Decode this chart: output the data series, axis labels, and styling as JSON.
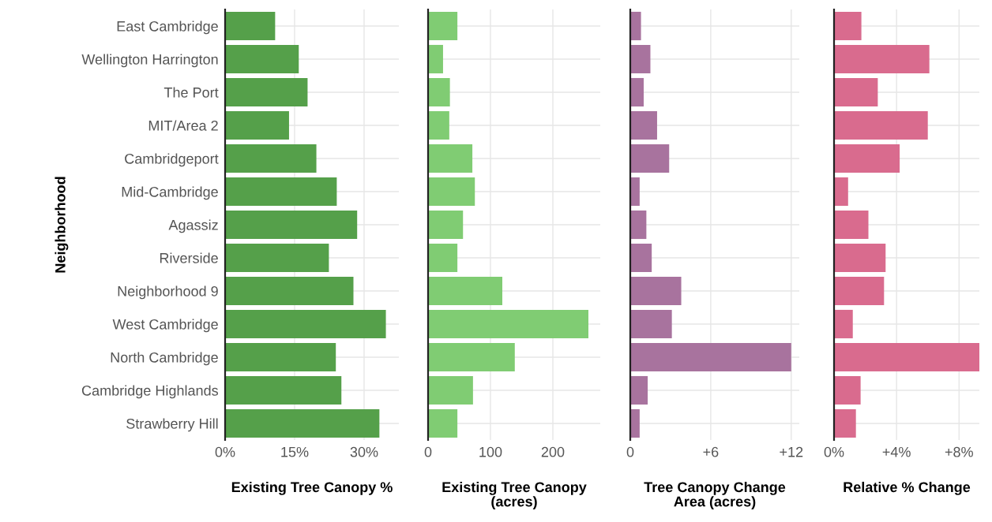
{
  "chart_data": [
    {
      "type": "bar",
      "orientation": "horizontal",
      "ylabel": "Neighborhood",
      "xlabel": "Existing Tree Canopy %",
      "categories": [
        "East Cambridge",
        "Wellington Harrington",
        "The Port",
        "MIT/Area 2",
        "Cambridgeport",
        "Mid-Cambridge",
        "Agassiz",
        "Riverside",
        "Neighborhood 9",
        "West Cambridge",
        "North Cambridge",
        "Cambridge Highlands",
        "Strawberry Hill"
      ],
      "values": [
        10.8,
        15.9,
        17.8,
        13.8,
        19.7,
        24.1,
        28.5,
        22.4,
        27.7,
        34.7,
        23.9,
        25.1,
        33.3
      ],
      "color": "#55a04a",
      "xlim": [
        0,
        37.5
      ],
      "xticks": [
        {
          "value": 0,
          "label": "0%"
        },
        {
          "value": 15,
          "label": "15%"
        },
        {
          "value": 30,
          "label": "30%"
        }
      ],
      "grid": true
    },
    {
      "type": "bar",
      "orientation": "horizontal",
      "xlabel": "Existing Tree Canopy\n(acres)",
      "values": [
        47,
        24,
        35,
        34,
        71,
        75,
        56,
        47,
        119,
        257,
        139,
        72,
        47
      ],
      "color": "#80cc73",
      "xlim": [
        0,
        276
      ],
      "xticks": [
        0,
        100,
        200
      ],
      "grid": true,
      "tick_labels": "x"
    },
    {
      "type": "bar",
      "orientation": "horizontal",
      "xlabel": "Tree Canopy Change\nArea (acres)",
      "values": [
        0.8,
        1.5,
        1.0,
        2.0,
        2.9,
        0.7,
        1.2,
        1.6,
        3.8,
        3.1,
        12.0,
        1.3,
        0.7
      ],
      "color": "#a8739e",
      "xlim": [
        0,
        12.6
      ],
      "xticks": [
        0,
        {
          "value": 6,
          "label": "+6"
        },
        {
          "value": 12,
          "label": "+12"
        }
      ],
      "grid": true,
      "tick_labels": "x"
    },
    {
      "type": "bar",
      "orientation": "horizontal",
      "xlabel": "Relative % Change",
      "values": [
        1.75,
        6.1,
        2.8,
        6.0,
        4.2,
        0.9,
        2.2,
        3.3,
        3.2,
        1.2,
        9.3,
        1.7,
        1.4
      ],
      "color": "#d96b8e",
      "xlim": [
        0,
        9.3
      ],
      "xticks": [
        {
          "value": 0,
          "label": "0%"
        },
        {
          "value": 4,
          "label": "+4%"
        },
        {
          "value": 8,
          "label": "+8%"
        }
      ],
      "grid": true,
      "tick_labels": "x"
    }
  ]
}
